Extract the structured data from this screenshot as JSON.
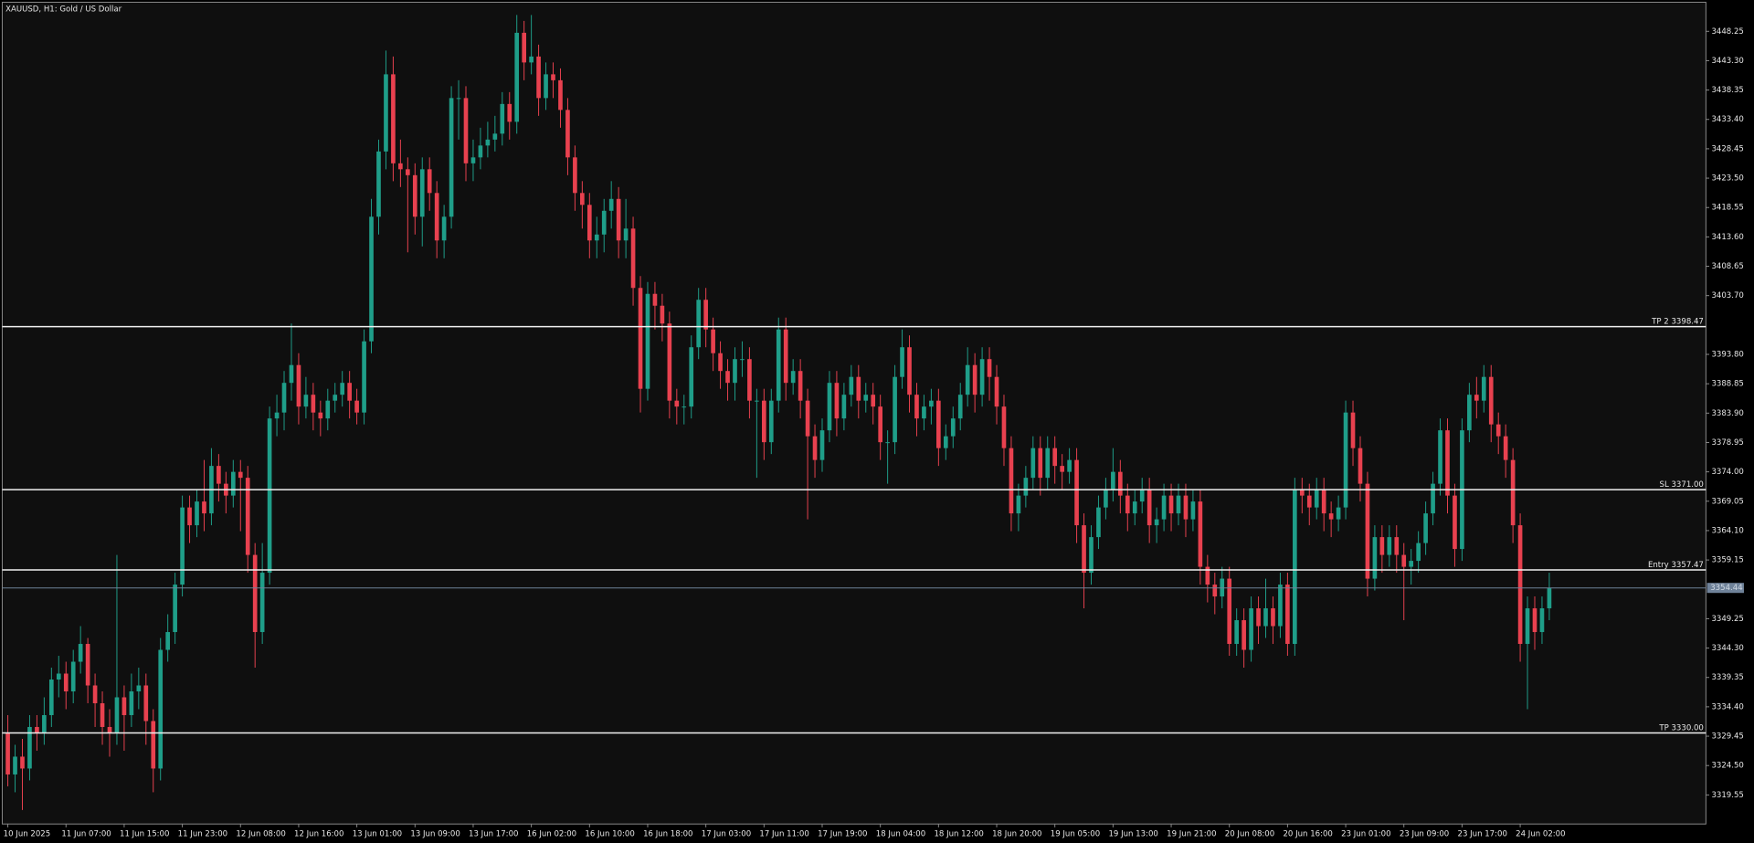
{
  "chart_data": {
    "type": "candlestick",
    "title": "XAUUSD, H1:  Gold / US Dollar",
    "bull_color": "#1f9e89",
    "bear_color": "#e8414f",
    "ylim": [
      3453.15,
      3314.65
    ],
    "yticks": [
      3448.25,
      {
        "value": 3443.3,
        "label": "3443.30"
      },
      3438.35,
      {
        "value": 3433.4,
        "label": "3433.40"
      },
      3428.45,
      {
        "value": 3423.5,
        "label": "3423.50"
      },
      3418.55,
      {
        "value": 3413.6,
        "label": "3413.60"
      },
      3408.65,
      {
        "value": 3403.7,
        "label": "3403.70"
      },
      {
        "value": 3393.8,
        "label": "3393.80"
      },
      3388.85,
      {
        "value": 3383.9,
        "label": "3383.90"
      },
      3378.95,
      {
        "value": 3374,
        "label": "3374.00"
      },
      3369.05,
      {
        "value": 3364.1,
        "label": "3364.10"
      },
      3359.15,
      3349.25,
      {
        "value": 3344.3,
        "label": "3344.30"
      },
      3339.35,
      {
        "value": 3334.4,
        "label": "3334.40"
      },
      3329.45,
      {
        "value": 3324.5,
        "label": "3324.50"
      },
      3319.55
    ],
    "levels": [
      {
        "label": "TP 2 3398.47",
        "value": 3398.47
      },
      {
        "label": "SL 3371.00",
        "value": 3371
      },
      {
        "label": "Entry 3357.47",
        "value": 3357.47
      },
      {
        "label": "TP 3330.00",
        "value": 3330
      }
    ],
    "last_price": 3354.44,
    "categories": [
      "10 Jun 2025",
      null,
      null,
      null,
      null,
      null,
      null,
      null,
      "11 Jun 07:00",
      null,
      null,
      null,
      null,
      null,
      null,
      null,
      "11 Jun 15:00",
      null,
      null,
      null,
      null,
      null,
      null,
      null,
      "11 Jun 23:00",
      null,
      null,
      null,
      null,
      null,
      null,
      null,
      "12 Jun 08:00",
      null,
      null,
      null,
      null,
      null,
      null,
      null,
      "12 Jun 16:00",
      null,
      null,
      null,
      null,
      null,
      null,
      null,
      "13 Jun 01:00",
      null,
      null,
      null,
      null,
      null,
      null,
      null,
      "13 Jun 09:00",
      null,
      null,
      null,
      null,
      null,
      null,
      null,
      "13 Jun 17:00",
      null,
      null,
      null,
      null,
      null,
      null,
      null,
      "16 Jun 02:00",
      null,
      null,
      null,
      null,
      null,
      null,
      null,
      "16 Jun 10:00",
      null,
      null,
      null,
      null,
      null,
      null,
      null,
      "16 Jun 18:00",
      null,
      null,
      null,
      null,
      null,
      null,
      null,
      "17 Jun 03:00",
      null,
      null,
      null,
      null,
      null,
      null,
      null,
      "17 Jun 11:00",
      null,
      null,
      null,
      null,
      null,
      null,
      null,
      "17 Jun 19:00",
      null,
      null,
      null,
      null,
      null,
      null,
      null,
      "18 Jun 04:00",
      null,
      null,
      null,
      null,
      null,
      null,
      null,
      "18 Jun 12:00",
      null,
      null,
      null,
      null,
      null,
      null,
      null,
      "18 Jun 20:00",
      null,
      null,
      null,
      null,
      null,
      null,
      null,
      "19 Jun 05:00",
      null,
      null,
      null,
      null,
      null,
      null,
      null,
      "19 Jun 13:00",
      null,
      null,
      null,
      null,
      null,
      null,
      null,
      "19 Jun 21:00",
      null,
      null,
      null,
      null,
      null,
      null,
      null,
      "20 Jun 08:00",
      null,
      null,
      null,
      null,
      null,
      null,
      null,
      "20 Jun 16:00",
      null,
      null,
      null,
      null,
      null,
      null,
      null,
      "23 Jun 01:00",
      null,
      null,
      null,
      null,
      null,
      null,
      null,
      "23 Jun 09:00",
      null,
      null,
      null,
      null,
      null,
      null,
      null,
      "23 Jun 17:00",
      null,
      null,
      null,
      null,
      null,
      null,
      null,
      "24 Jun 02:00",
      null,
      null,
      null,
      null
    ],
    "open": [
      3330,
      3323,
      3326,
      3324,
      3331,
      3330,
      3333,
      3339,
      3340,
      3337,
      3342,
      3345,
      3338,
      3335,
      3331,
      3330,
      3336,
      3333,
      3337,
      3338,
      3332,
      3324,
      3344,
      3347,
      3355,
      3368,
      3365,
      3369,
      3367,
      3375,
      3372,
      3370,
      3374,
      3373,
      3360,
      3347,
      3357,
      3383,
      3384,
      3389,
      3392,
      3385,
      3387,
      3384,
      3383,
      3386,
      3387,
      3389,
      3386,
      3384,
      3396,
      3417,
      3428,
      3441,
      3426,
      3425,
      3424,
      3417,
      3425,
      3421,
      3413,
      3417,
      3437,
      3437,
      3426,
      3427,
      3429,
      3430,
      3431,
      3436,
      3433,
      3448,
      3443,
      3444,
      3437,
      3441,
      3440,
      3435,
      3427,
      3421,
      3419,
      3413,
      3414,
      3418,
      3420,
      3413,
      3415,
      3405,
      3388,
      3404,
      3402,
      3399,
      3386,
      3385,
      3385,
      3395,
      3403,
      3398,
      3394,
      3391,
      3389,
      3393,
      3393,
      3386,
      3386,
      3379,
      3386,
      3398,
      3389,
      3391,
      3386,
      3380,
      3376,
      3381,
      3389,
      3383,
      3387,
      3390,
      3386,
      3387,
      3385,
      3379,
      3379,
      3390,
      3395,
      3387,
      3383,
      3385,
      3386,
      3378,
      3380,
      3383,
      3387,
      3392,
      3387,
      3393,
      3390,
      3385,
      3378,
      3367,
      3370,
      3373,
      3378,
      3373,
      3378,
      3375,
      3374,
      3376,
      3365,
      3357,
      3363,
      3368,
      3371,
      3374,
      3370,
      3367,
      3369,
      3371,
      3365,
      3366,
      3370,
      3367,
      3370,
      3366,
      3369,
      3358,
      3355,
      3353,
      3356,
      3345,
      3349,
      3344,
      3351,
      3348,
      3351,
      3348,
      3355,
      3345,
      3371,
      3370,
      3368,
      3371,
      3367,
      3366,
      3368,
      3384,
      3378,
      3372,
      3356,
      3363,
      3360,
      3363,
      3360,
      3358,
      3359,
      3362,
      3367,
      3372,
      3381,
      3370,
      3361,
      3381,
      3387,
      3386,
      3390,
      3382,
      3380,
      3376,
      3365,
      3345,
      3351,
      3347,
      3351
    ],
    "high": [
      3333,
      3328,
      3329,
      3333,
      3333,
      3336,
      3341,
      3343,
      3342,
      3344,
      3348,
      3346,
      3340,
      3337,
      3334,
      3360,
      3338,
      3340,
      3341,
      3340,
      3334,
      3346,
      3350,
      3357,
      3370,
      3370,
      3371,
      3376,
      3378,
      3377,
      3374,
      3376,
      3376,
      3375,
      3362,
      3362,
      3385,
      3387,
      3391,
      3399,
      3394,
      3390,
      3389,
      3386,
      3388,
      3389,
      3391,
      3391,
      3388,
      3398,
      3420,
      3430,
      3445,
      3444,
      3430,
      3427,
      3426,
      3427,
      3427,
      3423,
      3419,
      3439,
      3440,
      3439,
      3430,
      3432,
      3433,
      3434,
      3438,
      3438,
      3451,
      3450,
      3451,
      3446,
      3443,
      3443,
      3442,
      3437,
      3429,
      3423,
      3421,
      3417,
      3420,
      3423,
      3422,
      3420,
      3417,
      3407,
      3406,
      3406,
      3404,
      3401,
      3388,
      3387,
      3397,
      3405,
      3405,
      3400,
      3396,
      3393,
      3395,
      3396,
      3395,
      3388,
      3388,
      3388,
      3400,
      3400,
      3393,
      3393,
      3388,
      3382,
      3383,
      3391,
      3391,
      3389,
      3392,
      3392,
      3389,
      3389,
      3387,
      3381,
      3392,
      3398,
      3397,
      3389,
      3387,
      3388,
      3388,
      3382,
      3385,
      3389,
      3395,
      3394,
      3395,
      3395,
      3392,
      3387,
      3380,
      3372,
      3375,
      3380,
      3380,
      3380,
      3380,
      3377,
      3378,
      3378,
      3367,
      3365,
      3370,
      3373,
      3378,
      3376,
      3372,
      3371,
      3373,
      3373,
      3368,
      3372,
      3372,
      3372,
      3372,
      3371,
      3371,
      3360,
      3357,
      3358,
      3358,
      3351,
      3351,
      3353,
      3353,
      3356,
      3353,
      3357,
      3357,
      3373,
      3373,
      3372,
      3373,
      3373,
      3369,
      3370,
      3386,
      3386,
      3380,
      3374,
      3365,
      3365,
      3365,
      3365,
      3362,
      3361,
      3364,
      3369,
      3374,
      3383,
      3383,
      3372,
      3383,
      3389,
      3390,
      3392,
      3392,
      3384,
      3382,
      3378,
      3367,
      3353,
      3353,
      3353,
      3357
    ],
    "low": [
      3321,
      3320,
      3317,
      3322,
      3327,
      3328,
      3331,
      3336,
      3334,
      3335,
      3340,
      3335,
      3331,
      3328,
      3326,
      3328,
      3327,
      3331,
      3334,
      3328,
      3320,
      3322,
      3342,
      3345,
      3353,
      3362,
      3363,
      3364,
      3365,
      3369,
      3367,
      3368,
      3364,
      3357,
      3341,
      3345,
      3355,
      3380,
      3381,
      3386,
      3382,
      3383,
      3381,
      3380,
      3381,
      3384,
      3385,
      3383,
      3382,
      3382,
      3394,
      3414,
      3425,
      3423,
      3422,
      3411,
      3414,
      3412,
      3418,
      3410,
      3410,
      3415,
      3430,
      3423,
      3423,
      3425,
      3427,
      3428,
      3429,
      3430,
      3431,
      3440,
      3441,
      3434,
      3435,
      3437,
      3432,
      3424,
      3418,
      3415,
      3410,
      3410,
      3411,
      3415,
      3410,
      3410,
      3402,
      3384,
      3386,
      3398,
      3396,
      3383,
      3382,
      3382,
      3383,
      3393,
      3395,
      3391,
      3388,
      3386,
      3386,
      3390,
      3383,
      3373,
      3376,
      3377,
      3384,
      3386,
      3387,
      3383,
      3366,
      3373,
      3374,
      3379,
      3380,
      3381,
      3385,
      3383,
      3384,
      3382,
      3376,
      3372,
      3377,
      3388,
      3384,
      3380,
      3381,
      3382,
      3375,
      3376,
      3378,
      3381,
      3385,
      3384,
      3385,
      3386,
      3382,
      3375,
      3364,
      3364,
      3368,
      3371,
      3370,
      3371,
      3372,
      3371,
      3372,
      3362,
      3351,
      3355,
      3361,
      3366,
      3369,
      3367,
      3364,
      3365,
      3367,
      3362,
      3362,
      3364,
      3364,
      3365,
      3363,
      3364,
      3355,
      3352,
      3350,
      3351,
      3343,
      3343,
      3341,
      3342,
      3345,
      3346,
      3345,
      3346,
      3343,
      3343,
      3367,
      3365,
      3366,
      3364,
      3363,
      3364,
      3366,
      3375,
      3369,
      3353,
      3354,
      3357,
      3358,
      3357,
      3349,
      3355,
      3357,
      3360,
      3365,
      3370,
      3367,
      3358,
      3359,
      3379,
      3383,
      3384,
      3379,
      3377,
      3373,
      3362,
      3342,
      3334,
      3344,
      3345,
      3349
    ],
    "close": [
      3323,
      3326,
      3324,
      3331,
      3330,
      3333,
      3339,
      3340,
      3337,
      3342,
      3345,
      3338,
      3335,
      3331,
      3330,
      3336,
      3333,
      3337,
      3338,
      3332,
      3324,
      3344,
      3347,
      3355,
      3368,
      3365,
      3369,
      3367,
      3375,
      3372,
      3370,
      3374,
      3373,
      3360,
      3347,
      3357,
      3383,
      3384,
      3389,
      3392,
      3385,
      3387,
      3384,
      3383,
      3386,
      3387,
      3389,
      3386,
      3384,
      3396,
      3417,
      3428,
      3441,
      3426,
      3425,
      3424,
      3417,
      3425,
      3421,
      3413,
      3417,
      3437,
      3437,
      3426,
      3427,
      3429,
      3430,
      3431,
      3436,
      3433,
      3448,
      3443,
      3444,
      3437,
      3441,
      3440,
      3435,
      3427,
      3421,
      3419,
      3413,
      3414,
      3418,
      3420,
      3413,
      3415,
      3405,
      3388,
      3404,
      3402,
      3399,
      3386,
      3385,
      3385,
      3395,
      3403,
      3398,
      3394,
      3391,
      3389,
      3393,
      3393,
      3386,
      3386,
      3379,
      3386,
      3398,
      3389,
      3391,
      3386,
      3380,
      3376,
      3381,
      3389,
      3383,
      3387,
      3390,
      3386,
      3387,
      3385,
      3379,
      3379,
      3390,
      3395,
      3387,
      3383,
      3385,
      3386,
      3378,
      3380,
      3383,
      3387,
      3392,
      3387,
      3393,
      3390,
      3385,
      3378,
      3367,
      3370,
      3373,
      3378,
      3373,
      3378,
      3375,
      3374,
      3376,
      3365,
      3357,
      3363,
      3368,
      3371,
      3374,
      3370,
      3367,
      3369,
      3371,
      3365,
      3366,
      3370,
      3367,
      3370,
      3366,
      3369,
      3358,
      3355,
      3353,
      3356,
      3345,
      3349,
      3344,
      3351,
      3348,
      3351,
      3348,
      3355,
      3345,
      3371,
      3370,
      3368,
      3371,
      3367,
      3366,
      3368,
      3384,
      3378,
      3372,
      3356,
      3363,
      3360,
      3363,
      3360,
      3358,
      3359,
      3362,
      3367,
      3372,
      3381,
      3370,
      3361,
      3381,
      3387,
      3386,
      3390,
      3382,
      3380,
      3376,
      3365,
      3345,
      3351,
      3347,
      3351,
      3354.44
    ]
  }
}
